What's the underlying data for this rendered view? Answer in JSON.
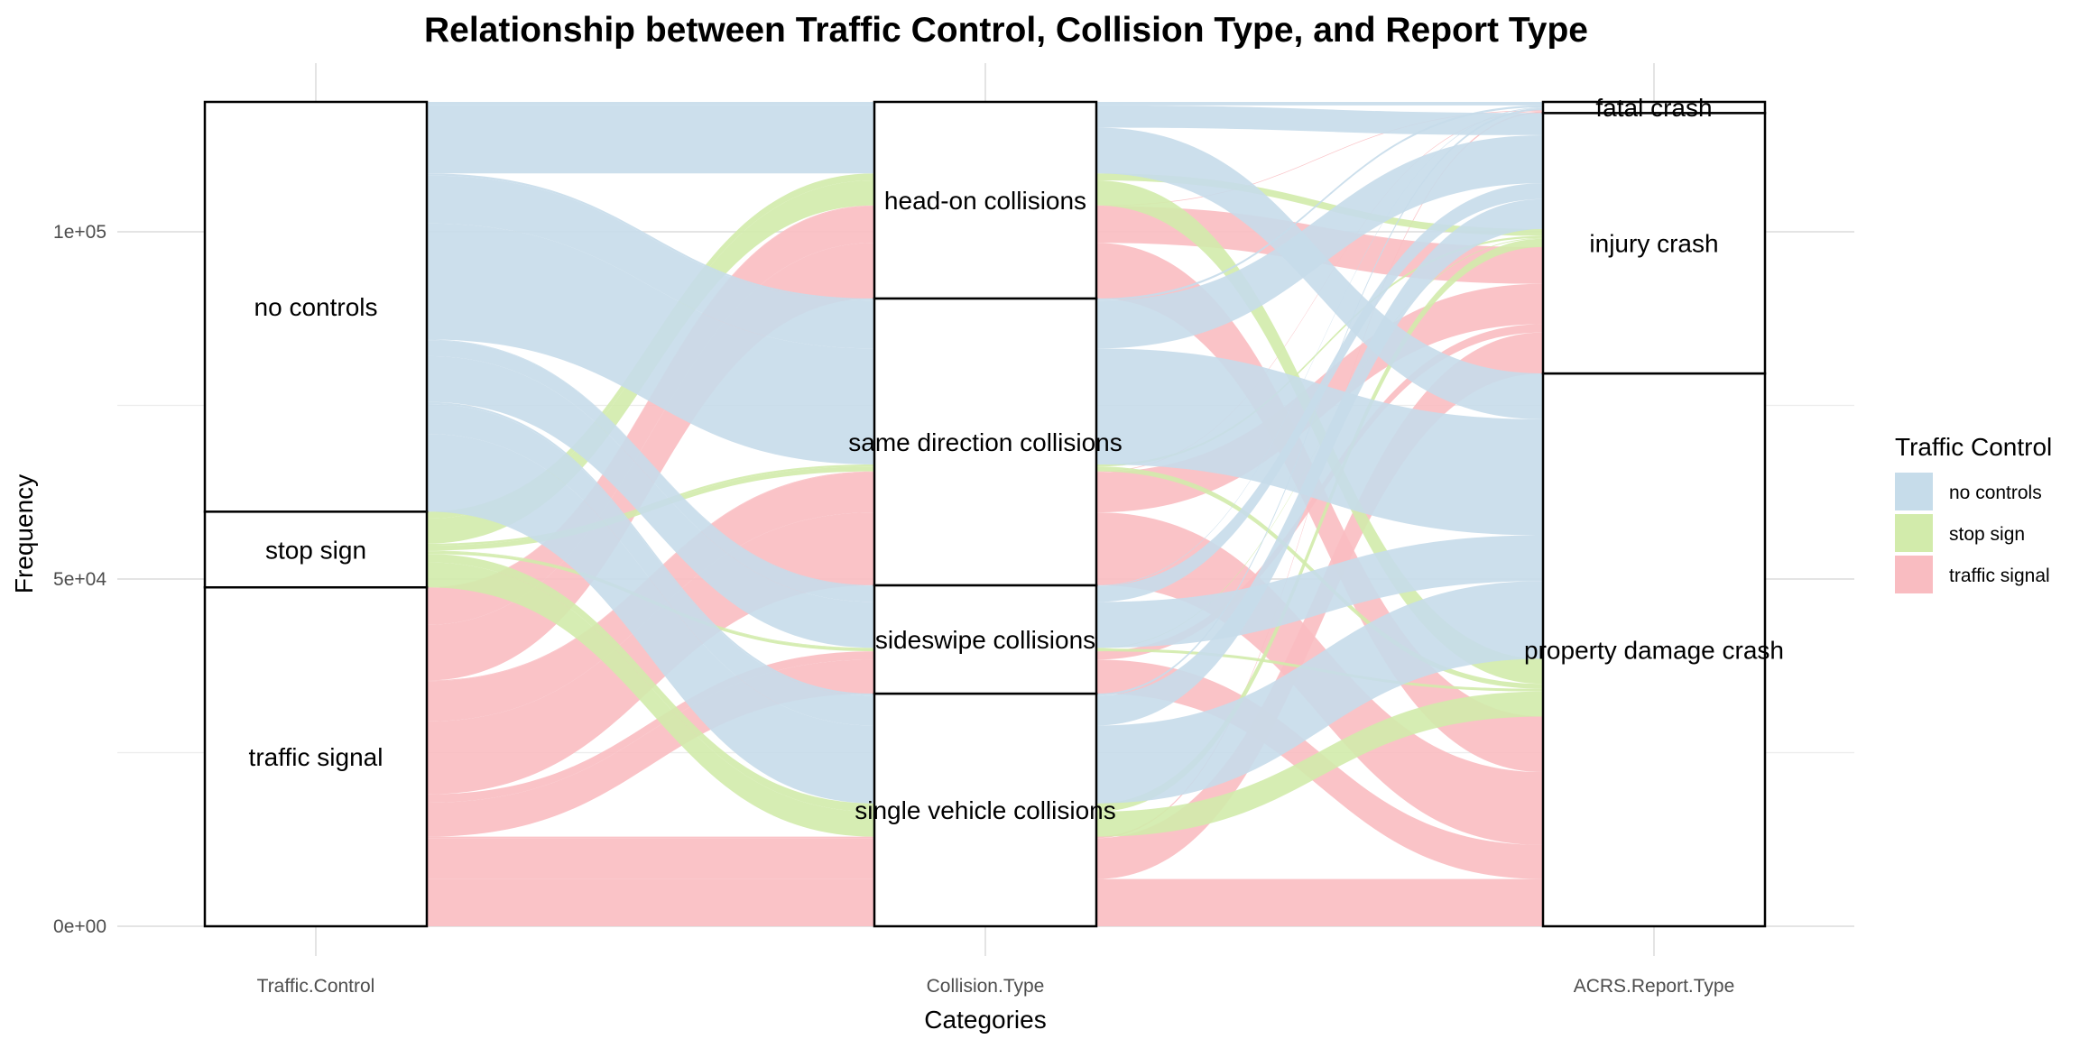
{
  "chart_data": {
    "type": "alluvial",
    "title": "Relationship between Traffic Control, Collision Type, and Report Type",
    "xlabel": "Categories",
    "ylabel": "Frequency",
    "ylim": [
      0,
      128000
    ],
    "y_ticks": [
      {
        "value": 0,
        "label": "0e+00"
      },
      {
        "value": 50000,
        "label": "5e+04"
      },
      {
        "value": 100000,
        "label": "1e+05"
      }
    ],
    "axes": [
      {
        "name": "Traffic.Control",
        "nodes": [
          "traffic signal",
          "stop sign",
          "no controls"
        ]
      },
      {
        "name": "Collision.Type",
        "nodes": [
          "single vehicle collisions",
          "sideswipe collisions",
          "same direction collisions",
          "head-on collisions"
        ]
      },
      {
        "name": "ACRS.Report.Type",
        "nodes": [
          "property damage crash",
          "injury crash",
          "fatal crash"
        ]
      }
    ],
    "legend": {
      "title": "Traffic Control",
      "position": "right",
      "entries": [
        {
          "name": "no controls",
          "color": "#c6dcea"
        },
        {
          "name": "stop sign",
          "color": "#d2ebab"
        },
        {
          "name": "traffic signal",
          "color": "#f9bcc1"
        }
      ]
    },
    "flows": [
      {
        "tc": "traffic signal",
        "ct": "single vehicle collisions",
        "rt": "property damage crash",
        "value": 6800
      },
      {
        "tc": "traffic signal",
        "ct": "single vehicle collisions",
        "rt": "injury crash",
        "value": 5900
      },
      {
        "tc": "traffic signal",
        "ct": "single vehicle collisions",
        "rt": "fatal crash",
        "value": 200
      },
      {
        "tc": "traffic signal",
        "ct": "sideswipe collisions",
        "rt": "property damage crash",
        "value": 4900
      },
      {
        "tc": "traffic signal",
        "ct": "sideswipe collisions",
        "rt": "injury crash",
        "value": 1200
      },
      {
        "tc": "traffic signal",
        "ct": "same direction collisions",
        "rt": "property damage crash",
        "value": 10500
      },
      {
        "tc": "traffic signal",
        "ct": "same direction collisions",
        "rt": "injury crash",
        "value": 5800
      },
      {
        "tc": "traffic signal",
        "ct": "same direction collisions",
        "rt": "fatal crash",
        "value": 100
      },
      {
        "tc": "traffic signal",
        "ct": "head-on collisions",
        "rt": "property damage crash",
        "value": 8000
      },
      {
        "tc": "traffic signal",
        "ct": "head-on collisions",
        "rt": "injury crash",
        "value": 5300
      },
      {
        "tc": "traffic signal",
        "ct": "head-on collisions",
        "rt": "fatal crash",
        "value": 100
      },
      {
        "tc": "stop sign",
        "ct": "single vehicle collisions",
        "rt": "property damage crash",
        "value": 3600
      },
      {
        "tc": "stop sign",
        "ct": "single vehicle collisions",
        "rt": "injury crash",
        "value": 1200
      },
      {
        "tc": "stop sign",
        "ct": "sideswipe collisions",
        "rt": "property damage crash",
        "value": 400
      },
      {
        "tc": "stop sign",
        "ct": "sideswipe collisions",
        "rt": "injury crash",
        "value": 100
      },
      {
        "tc": "stop sign",
        "ct": "same direction collisions",
        "rt": "property damage crash",
        "value": 700
      },
      {
        "tc": "stop sign",
        "ct": "same direction collisions",
        "rt": "injury crash",
        "value": 300
      },
      {
        "tc": "stop sign",
        "ct": "head-on collisions",
        "rt": "property damage crash",
        "value": 3600
      },
      {
        "tc": "stop sign",
        "ct": "head-on collisions",
        "rt": "injury crash",
        "value": 1000
      },
      {
        "tc": "no controls",
        "ct": "single vehicle collisions",
        "rt": "property damage crash",
        "value": 11200
      },
      {
        "tc": "no controls",
        "ct": "single vehicle collisions",
        "rt": "injury crash",
        "value": 4300
      },
      {
        "tc": "no controls",
        "ct": "single vehicle collisions",
        "rt": "fatal crash",
        "value": 300
      },
      {
        "tc": "no controls",
        "ct": "sideswipe collisions",
        "rt": "property damage crash",
        "value": 6600
      },
      {
        "tc": "no controls",
        "ct": "sideswipe collisions",
        "rt": "injury crash",
        "value": 2300
      },
      {
        "tc": "no controls",
        "ct": "sideswipe collisions",
        "rt": "fatal crash",
        "value": 100
      },
      {
        "tc": "no controls",
        "ct": "same direction collisions",
        "rt": "property damage crash",
        "value": 16700
      },
      {
        "tc": "no controls",
        "ct": "same direction collisions",
        "rt": "injury crash",
        "value": 6900
      },
      {
        "tc": "no controls",
        "ct": "same direction collisions",
        "rt": "fatal crash",
        "value": 300
      },
      {
        "tc": "no controls",
        "ct": "head-on collisions",
        "rt": "property damage crash",
        "value": 6600
      },
      {
        "tc": "no controls",
        "ct": "head-on collisions",
        "rt": "injury crash",
        "value": 3200
      },
      {
        "tc": "no controls",
        "ct": "head-on collisions",
        "rt": "fatal crash",
        "value": 500
      }
    ]
  }
}
